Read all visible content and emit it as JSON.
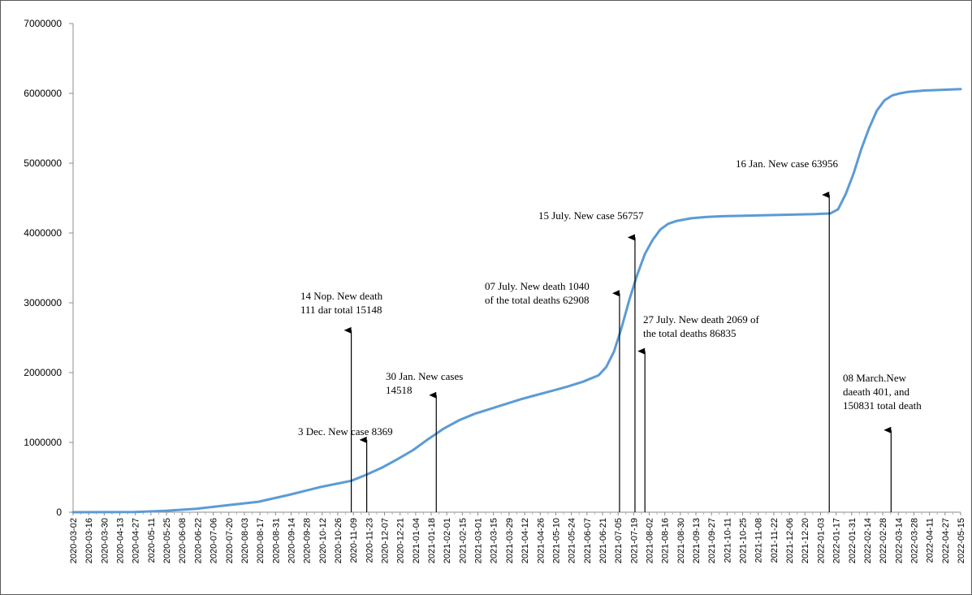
{
  "chart_data": {
    "type": "line",
    "title": "",
    "xlabel": "",
    "ylabel": "",
    "ylim": [
      0,
      7000000
    ],
    "y_ticks": [
      "0",
      "1000000",
      "2000000",
      "3000000",
      "4000000",
      "5000000",
      "6000000",
      "7000000"
    ],
    "x_start": "2020-03-02",
    "x_end": "2022-05-15",
    "x_tick_labels": [
      "2020-03-02",
      "2020-03-16",
      "2020-03-30",
      "2020-04-13",
      "2020-04-27",
      "2020-05-11",
      "2020-05-25",
      "2020-06-08",
      "2020-06-22",
      "2020-07-06",
      "2020-07-20",
      "2020-08-03",
      "2020-08-17",
      "2020-08-31",
      "2020-09-14",
      "2020-09-28",
      "2020-10-12",
      "2020-10-26",
      "2020-11-09",
      "2020-11-23",
      "2020-12-07",
      "2020-12-21",
      "2021-01-04",
      "2021-01-18",
      "2021-02-01",
      "2021-02-15",
      "2021-03-01",
      "2021-03-15",
      "2021-03-29",
      "2021-04-12",
      "2021-04-26",
      "2021-05-10",
      "2021-05-24",
      "2021-06-07",
      "2021-06-21",
      "2021-07-05",
      "2021-07-19",
      "2021-08-02",
      "2021-08-16",
      "2021-08-30",
      "2021-09-13",
      "2021-09-27",
      "2021-10-11",
      "2021-10-25",
      "2021-11-08",
      "2021-11-22",
      "2021-12-06",
      "2021-12-20",
      "2022-01-03",
      "2022-01-17",
      "2022-01-31",
      "2022-02-14",
      "2022-02-28",
      "2022-03-14",
      "2022-03-28",
      "2022-04-11",
      "2022-04-27",
      "2022-05-15"
    ],
    "grid": false,
    "line_color": "#5b9bd5",
    "series": [
      {
        "x": [
          "2020-03-02",
          "2020-04-27",
          "2020-05-25",
          "2020-06-22",
          "2020-07-20",
          "2020-08-17",
          "2020-09-14",
          "2020-10-12",
          "2020-11-09",
          "2020-11-23",
          "2020-12-07",
          "2020-12-21",
          "2021-01-04",
          "2021-01-18",
          "2021-02-01",
          "2021-02-15",
          "2021-03-01",
          "2021-03-15",
          "2021-03-29",
          "2021-04-12",
          "2021-04-26",
          "2021-05-10",
          "2021-05-24",
          "2021-06-07",
          "2021-06-21",
          "2021-06-28",
          "2021-07-05",
          "2021-07-12",
          "2021-07-19",
          "2021-07-26",
          "2021-08-02",
          "2021-08-09",
          "2021-08-16",
          "2021-08-23",
          "2021-08-30",
          "2021-09-13",
          "2021-09-27",
          "2021-10-11",
          "2021-11-08",
          "2021-12-06",
          "2022-01-03",
          "2022-01-17",
          "2022-01-24",
          "2022-01-31",
          "2022-02-07",
          "2022-02-14",
          "2022-02-21",
          "2022-02-28",
          "2022-03-07",
          "2022-03-14",
          "2022-03-21",
          "2022-03-28",
          "2022-04-11",
          "2022-04-27",
          "2022-05-15"
        ],
        "y": [
          0,
          2000,
          20000,
          50000,
          100000,
          150000,
          250000,
          360000,
          450000,
          540000,
          640000,
          760000,
          890000,
          1050000,
          1200000,
          1320000,
          1410000,
          1480000,
          1550000,
          1620000,
          1680000,
          1740000,
          1800000,
          1870000,
          1960000,
          2080000,
          2300000,
          2650000,
          3050000,
          3400000,
          3700000,
          3900000,
          4050000,
          4130000,
          4170000,
          4210000,
          4230000,
          4240000,
          4250000,
          4260000,
          4270000,
          4280000,
          4340000,
          4560000,
          4850000,
          5200000,
          5500000,
          5750000,
          5900000,
          5970000,
          6000000,
          6020000,
          6040000,
          6050000,
          6060000
        ]
      }
    ],
    "annotations": [
      {
        "lines": [
          "14 Nop. New death",
          "111 dar total 15148"
        ],
        "date": "2020-11-09",
        "arrow_to": 2630000
      },
      {
        "lines": [
          "3 Dec. New case 8369"
        ],
        "date": "2020-11-23",
        "arrow_to": 1060000
      },
      {
        "lines": [
          "30 Jan. New cases",
          "14518"
        ],
        "date": "2021-01-25",
        "arrow_to": 1700000
      },
      {
        "lines": [
          "07 July. New death 1040",
          "of the total deaths 62908"
        ],
        "date": "2021-07-10",
        "arrow_to": 3160000
      },
      {
        "lines": [
          "15 July. New case 56757"
        ],
        "date": "2021-07-24",
        "arrow_to": 3960000
      },
      {
        "lines": [
          "27 July. New death 2069 of",
          "the total deaths 86835"
        ],
        "date": "2021-08-02",
        "arrow_to": 2330000
      },
      {
        "lines": [
          "16 Jan. New case 63956"
        ],
        "date": "2022-01-16",
        "arrow_to": 4570000
      },
      {
        "lines": [
          "08 March.New",
          "daeath 401, and",
          "150831 total death"
        ],
        "date": "2022-03-13",
        "arrow_to": 1200000
      }
    ]
  }
}
